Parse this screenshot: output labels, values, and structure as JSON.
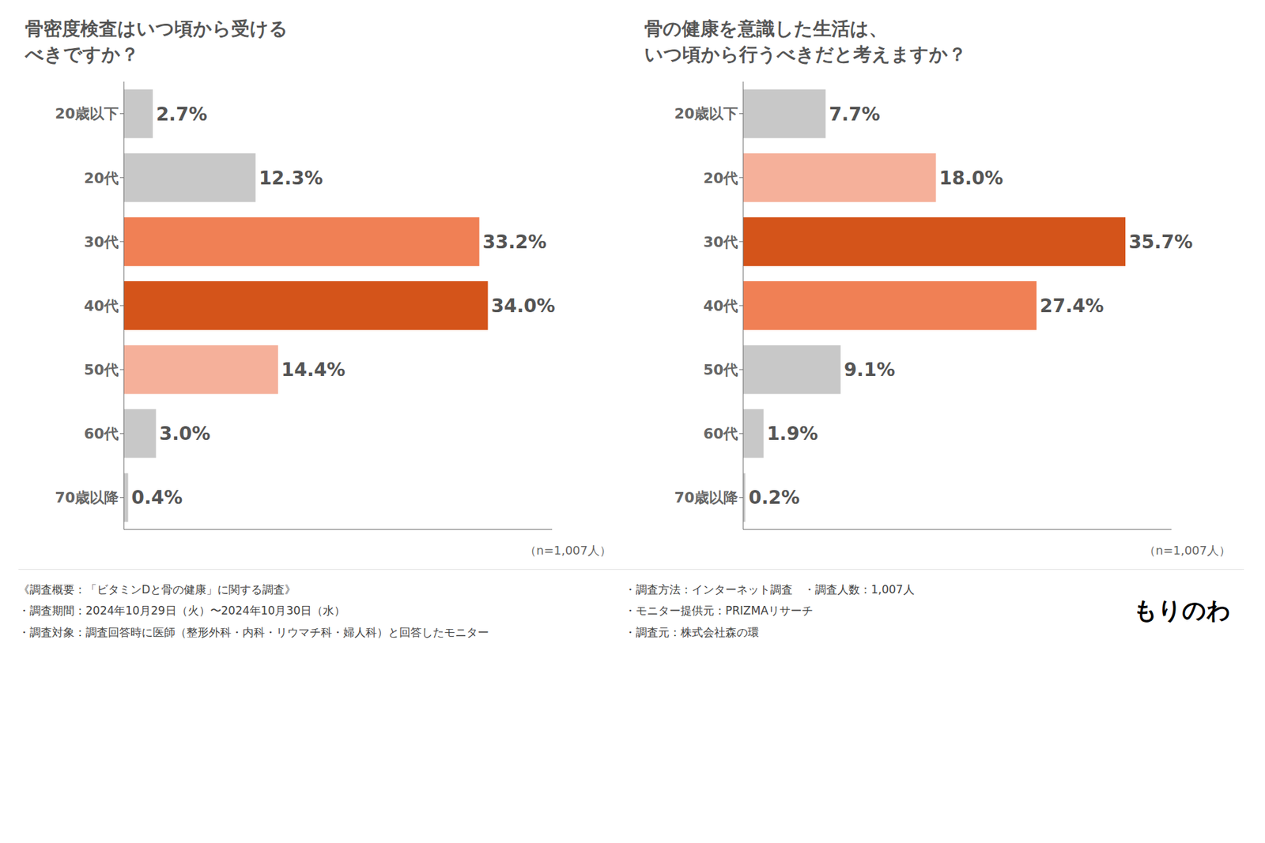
{
  "chart_data": [
    {
      "type": "bar",
      "orientation": "horizontal",
      "title": "骨密度検査はいつ頃から受ける\nべきですか？",
      "categories": [
        "20歳以下",
        "20代",
        "30代",
        "40代",
        "50代",
        "60代",
        "70歳以降"
      ],
      "values": [
        2.7,
        12.3,
        33.2,
        34.0,
        14.4,
        3.0,
        0.4
      ],
      "value_labels": [
        "2.7%",
        "12.3%",
        "33.2%",
        "34.0%",
        "14.4%",
        "3.0%",
        "0.4%"
      ],
      "data_labels": true,
      "colors": [
        "#c8c8c8",
        "#c8c8c8",
        "#f08055",
        "#d4541a",
        "#f5b09a",
        "#c8c8c8",
        "#c8c8c8"
      ],
      "xlim": [
        0,
        40
      ],
      "grid": false,
      "tick_labels": "y",
      "annotations": [
        "（n=1,007人）"
      ]
    },
    {
      "type": "bar",
      "orientation": "horizontal",
      "title": "骨の健康を意識した生活は、\nいつ頃から行うべきだと考えますか？",
      "categories": [
        "20歳以下",
        "20代",
        "30代",
        "40代",
        "50代",
        "60代",
        "70歳以降"
      ],
      "values": [
        7.7,
        18.0,
        35.7,
        27.4,
        9.1,
        1.9,
        0.2
      ],
      "value_labels": [
        "7.7%",
        "18.0%",
        "35.7%",
        "27.4%",
        "9.1%",
        "1.9%",
        "0.2%"
      ],
      "data_labels": true,
      "colors": [
        "#c8c8c8",
        "#f5b09a",
        "#d4541a",
        "#f08055",
        "#c8c8c8",
        "#c8c8c8",
        "#c8c8c8"
      ],
      "xlim": [
        0,
        40
      ],
      "grid": false,
      "tick_labels": "y",
      "annotations": [
        "（n=1,007人）"
      ]
    }
  ],
  "annotations": [
    "《調査概要：「ビタミンDと骨の健康」に関する調査》",
    "・調査期間：2024年10月29日（火）〜2024年10月30日（水）",
    "・調査対象：調査回答時に医師（整形外科・内科・リウマチ科・婦人科）と回答したモニター",
    "・調査方法：インターネット調査　・調査人数：1,007人",
    "・モニター提供元：PRIZMAリサーチ",
    "・調査元：株式会社森の環",
    "もりのわ"
  ]
}
